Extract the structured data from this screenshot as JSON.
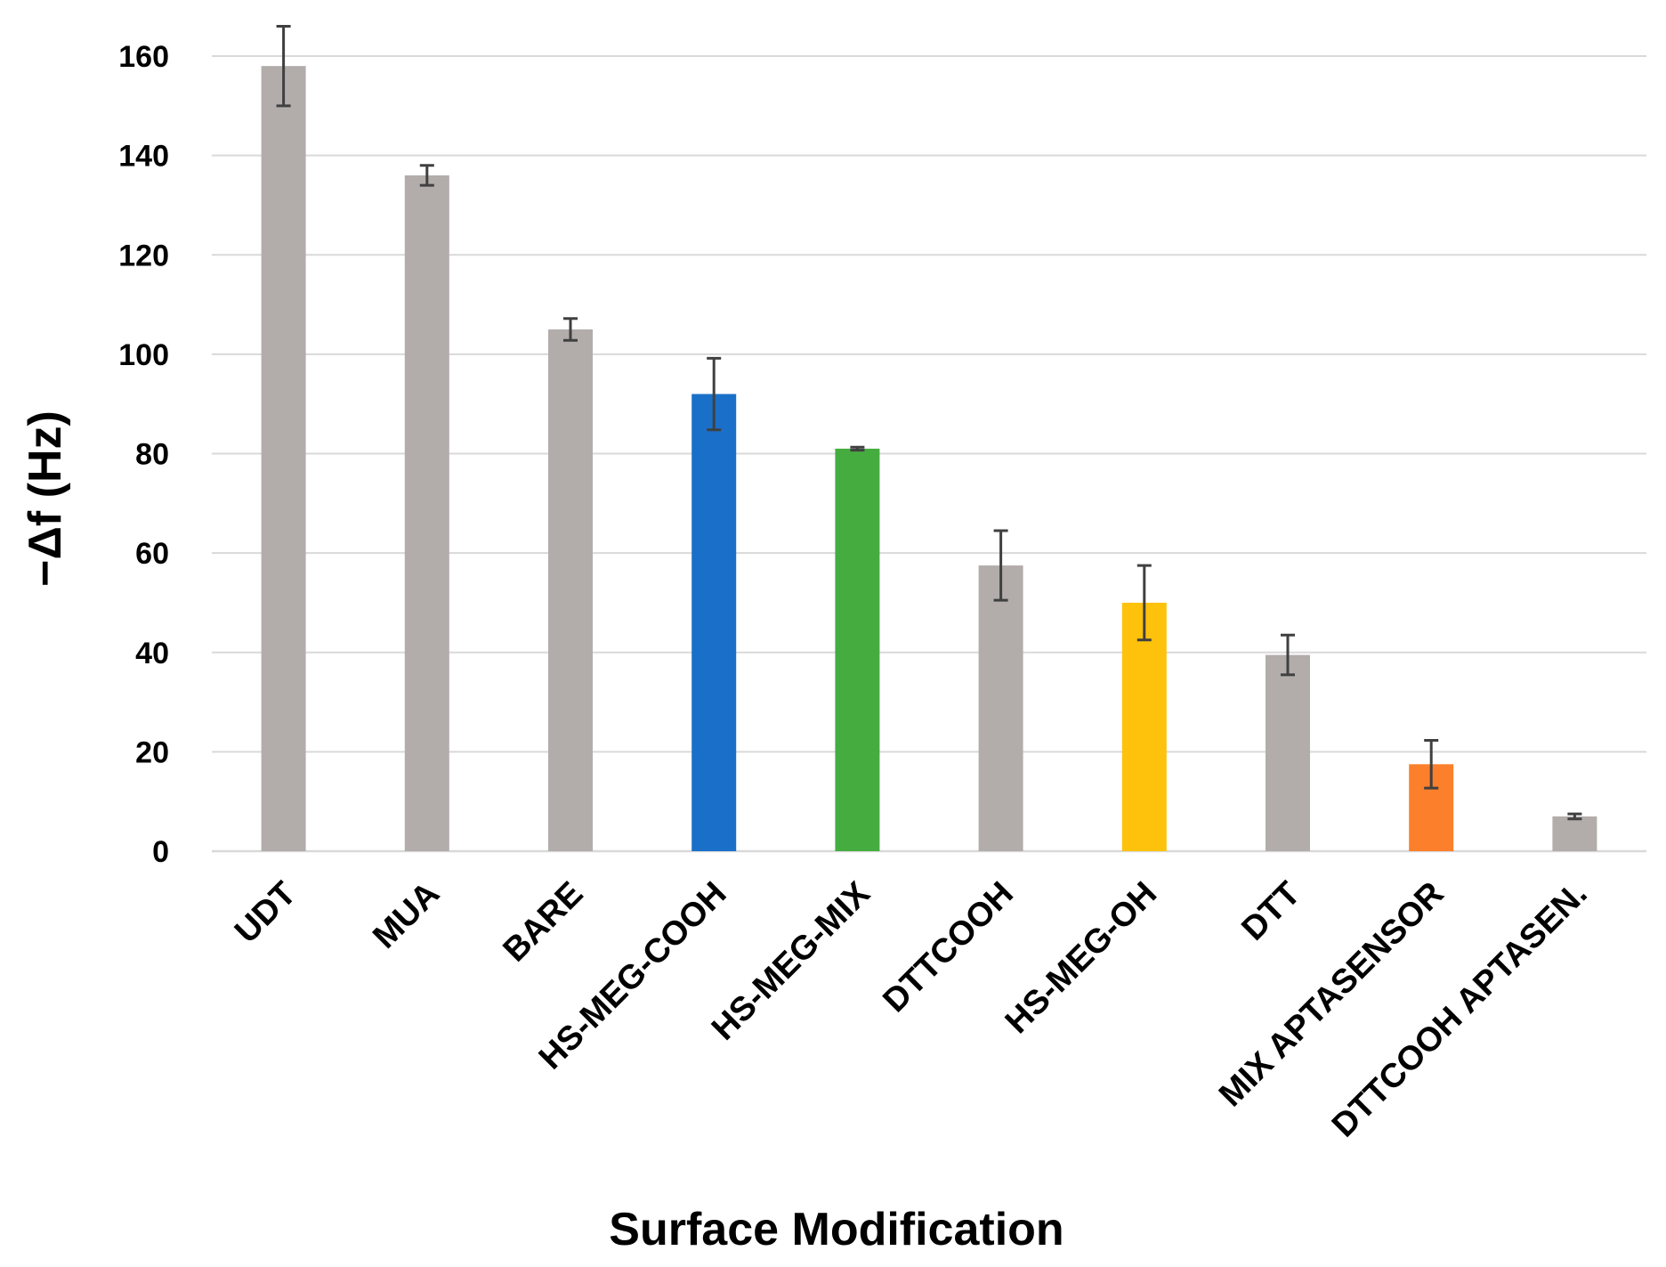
{
  "chart_data": {
    "type": "bar",
    "title": "",
    "xlabel": "Surface Modification",
    "ylabel": "−Δf (Hz)",
    "ylim": [
      0,
      160
    ],
    "yticks": [
      0,
      20,
      40,
      60,
      80,
      100,
      120,
      140,
      160
    ],
    "grid": true,
    "legend": "none",
    "categories": [
      "UDT",
      "MUA",
      "BARE",
      "HS-MEG-COOH",
      "HS-MEG-MIX",
      "DTTCOOH",
      "HS-MEG-OH",
      "DTT",
      "MIX APTASENSOR",
      "DTTCOOH APTASEN."
    ],
    "values": [
      158,
      136,
      105,
      92,
      81,
      57.5,
      50,
      39.5,
      17.5,
      7
    ],
    "errors": [
      8,
      2,
      2.2,
      7.2,
      0.3,
      7,
      7.5,
      4,
      4.8,
      0.5
    ],
    "colors": [
      "#b2adab",
      "#b2adab",
      "#b2adab",
      "#1a70c8",
      "#45ad3f",
      "#b2adab",
      "#fec20d",
      "#b2adab",
      "#fc7f2b",
      "#b2adab"
    ],
    "error_color": "#404040",
    "grid_color": "#d9d9d9"
  }
}
